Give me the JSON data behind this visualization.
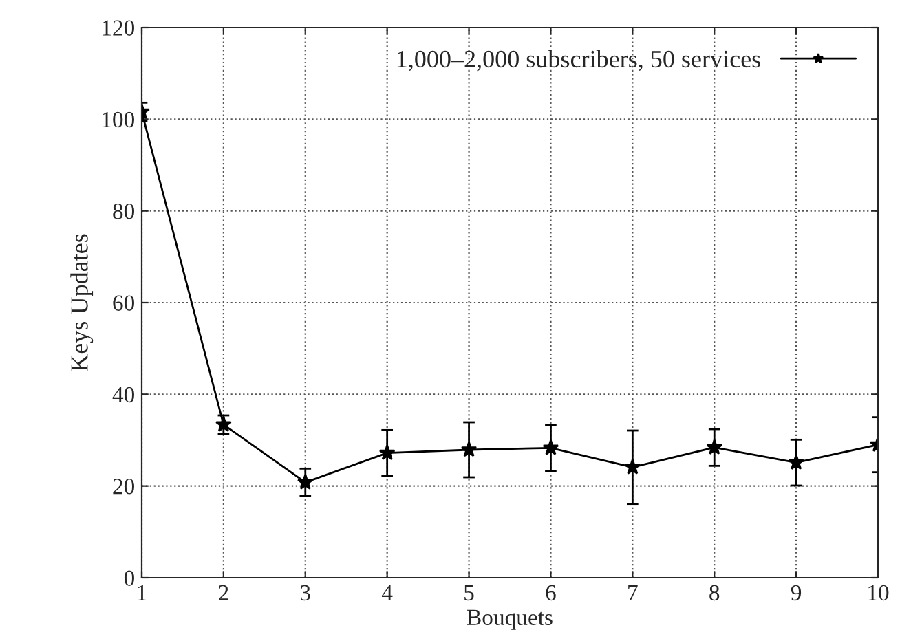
{
  "chart_data": {
    "type": "line",
    "xlabel": "Bouquets",
    "ylabel": "Keys Updates",
    "x": [
      1,
      2,
      3,
      4,
      5,
      6,
      7,
      8,
      9,
      10
    ],
    "series": [
      {
        "name": "1,000–2,000 subscribers, 50 services",
        "color": "#000000",
        "values": [
          101.6,
          33.4,
          20.8,
          27.2,
          27.9,
          28.3,
          24.1,
          28.4,
          25.1,
          29.0
        ],
        "errors": [
          2,
          2,
          3,
          5,
          6,
          5,
          8,
          4,
          5,
          6
        ]
      }
    ],
    "xlim": [
      1,
      10
    ],
    "xticks": [
      1,
      2,
      3,
      4,
      5,
      6,
      7,
      8,
      9,
      10
    ],
    "ylim": [
      0,
      120
    ],
    "yticks": [
      0,
      20,
      40,
      60,
      80,
      100,
      120
    ],
    "grid": true,
    "legend": "top right",
    "marker": "star",
    "line_style": "solid"
  }
}
